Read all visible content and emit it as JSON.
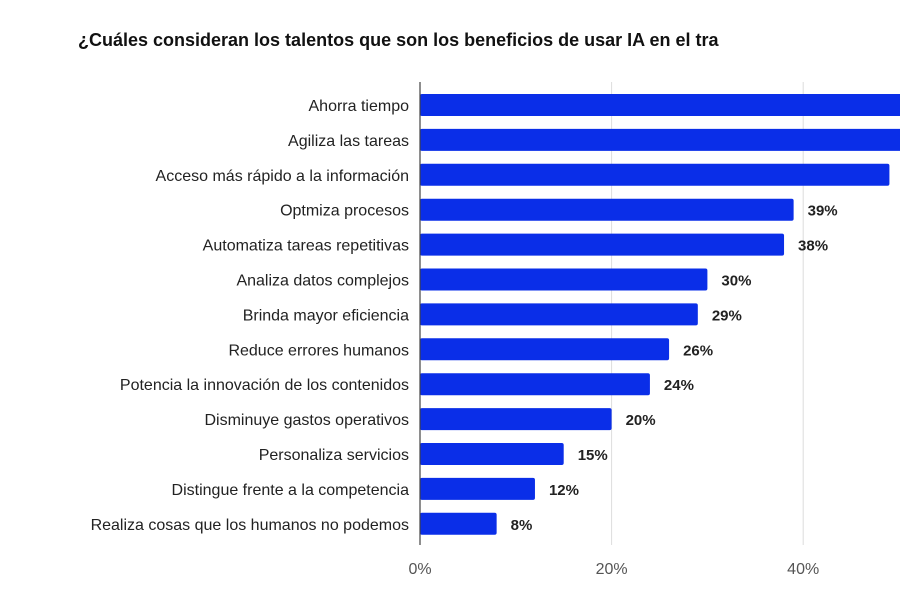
{
  "chart_data": {
    "type": "bar",
    "orientation": "horizontal",
    "title": "¿Cuáles consideran los talentos que son los beneficios de usar IA en el tra",
    "categories": [
      "Ahorra tiempo",
      "Agiliza las tareas",
      "Acceso más rápido a la información",
      "Optmiza procesos",
      "Automatiza tareas repetitivas",
      "Analiza datos complejos",
      "Brinda mayor eficiencia",
      "Reduce errores humanos",
      "Potencia la innovación de los contenidos",
      "Disminuye gastos operativos",
      "Personaliza servicios",
      "Distingue frente a la competencia",
      "Realiza cosas que los humanos no podemos"
    ],
    "values": [
      55,
      52,
      49,
      39,
      38,
      30,
      29,
      26,
      24,
      20,
      15,
      12,
      8
    ],
    "data_labels": [
      null,
      null,
      null,
      "39%",
      "38%",
      "30%",
      "29%",
      "26%",
      "24%",
      "20%",
      "15%",
      "12%",
      "8%"
    ],
    "xticks": [
      "0%",
      "20%",
      "40%"
    ],
    "xtick_values": [
      0,
      20,
      40
    ],
    "grid": true,
    "bar_color": "#0a2ee8"
  }
}
